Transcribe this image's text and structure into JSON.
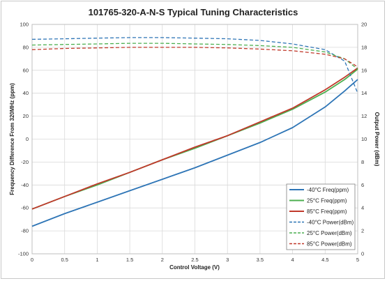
{
  "chart_data": {
    "type": "line",
    "title": "101765-320-A-N-S Typical Tuning Characteristics",
    "xlabel": "Control Voltage (V)",
    "ylabel": "Frequency Difference From 320MHz (ppm)",
    "y2label": "Output Power (dBm)",
    "xlim": [
      0,
      5
    ],
    "ylim": [
      -100,
      100
    ],
    "y2lim": [
      0,
      20
    ],
    "x_ticks": [
      "0",
      "0.5",
      "1",
      "1.5",
      "2",
      "2.5",
      "3",
      "3.5",
      "4",
      "4.5",
      "5"
    ],
    "y_ticks": [
      "-100",
      "-80",
      "-60",
      "-40",
      "-20",
      "0",
      "20",
      "40",
      "60",
      "80",
      "100"
    ],
    "y2_ticks": [
      "0",
      "2",
      "4",
      "6",
      "8",
      "10",
      "12",
      "14",
      "16",
      "18",
      "20"
    ],
    "grid": true,
    "legend_position": "bottom-right",
    "x": [
      0,
      0.5,
      1,
      1.5,
      2,
      2.5,
      3,
      3.5,
      4,
      4.5,
      4.8,
      5
    ],
    "series": [
      {
        "name": "-40°C Freq(ppm)",
        "axis": "left",
        "color": "#2e75b6",
        "dash": false,
        "values": [
          -76,
          -65,
          -55,
          -45,
          -35,
          -25,
          -14,
          -3,
          10,
          28,
          42,
          52
        ]
      },
      {
        "name": "25°C Freq(ppm)",
        "axis": "left",
        "color": "#4caf50",
        "dash": false,
        "values": [
          -61,
          -50,
          -40,
          -29,
          -18,
          -8,
          3,
          14,
          26,
          41,
          52,
          61
        ]
      },
      {
        "name": "85°C Freq(ppm)",
        "axis": "left",
        "color": "#c0392b",
        "dash": false,
        "values": [
          -61,
          -50,
          -39,
          -29,
          -18,
          -7,
          3,
          15,
          27,
          43,
          54,
          62
        ]
      },
      {
        "name": "-40°C Power(dBm)",
        "axis": "right",
        "color": "#2e75b6",
        "dash": true,
        "values": [
          18.7,
          18.75,
          18.8,
          18.85,
          18.85,
          18.8,
          18.75,
          18.6,
          18.3,
          17.8,
          16.8,
          14.0
        ]
      },
      {
        "name": "25°C Power(dBm)",
        "axis": "right",
        "color": "#4caf50",
        "dash": true,
        "values": [
          18.2,
          18.25,
          18.3,
          18.35,
          18.35,
          18.3,
          18.25,
          18.15,
          18.0,
          17.6,
          17.0,
          16.1
        ]
      },
      {
        "name": "85°C Power(dBm)",
        "axis": "right",
        "color": "#c0392b",
        "dash": true,
        "values": [
          17.8,
          17.9,
          17.95,
          18.0,
          18.0,
          18.0,
          17.95,
          17.85,
          17.7,
          17.4,
          17.0,
          16.3
        ]
      }
    ]
  }
}
